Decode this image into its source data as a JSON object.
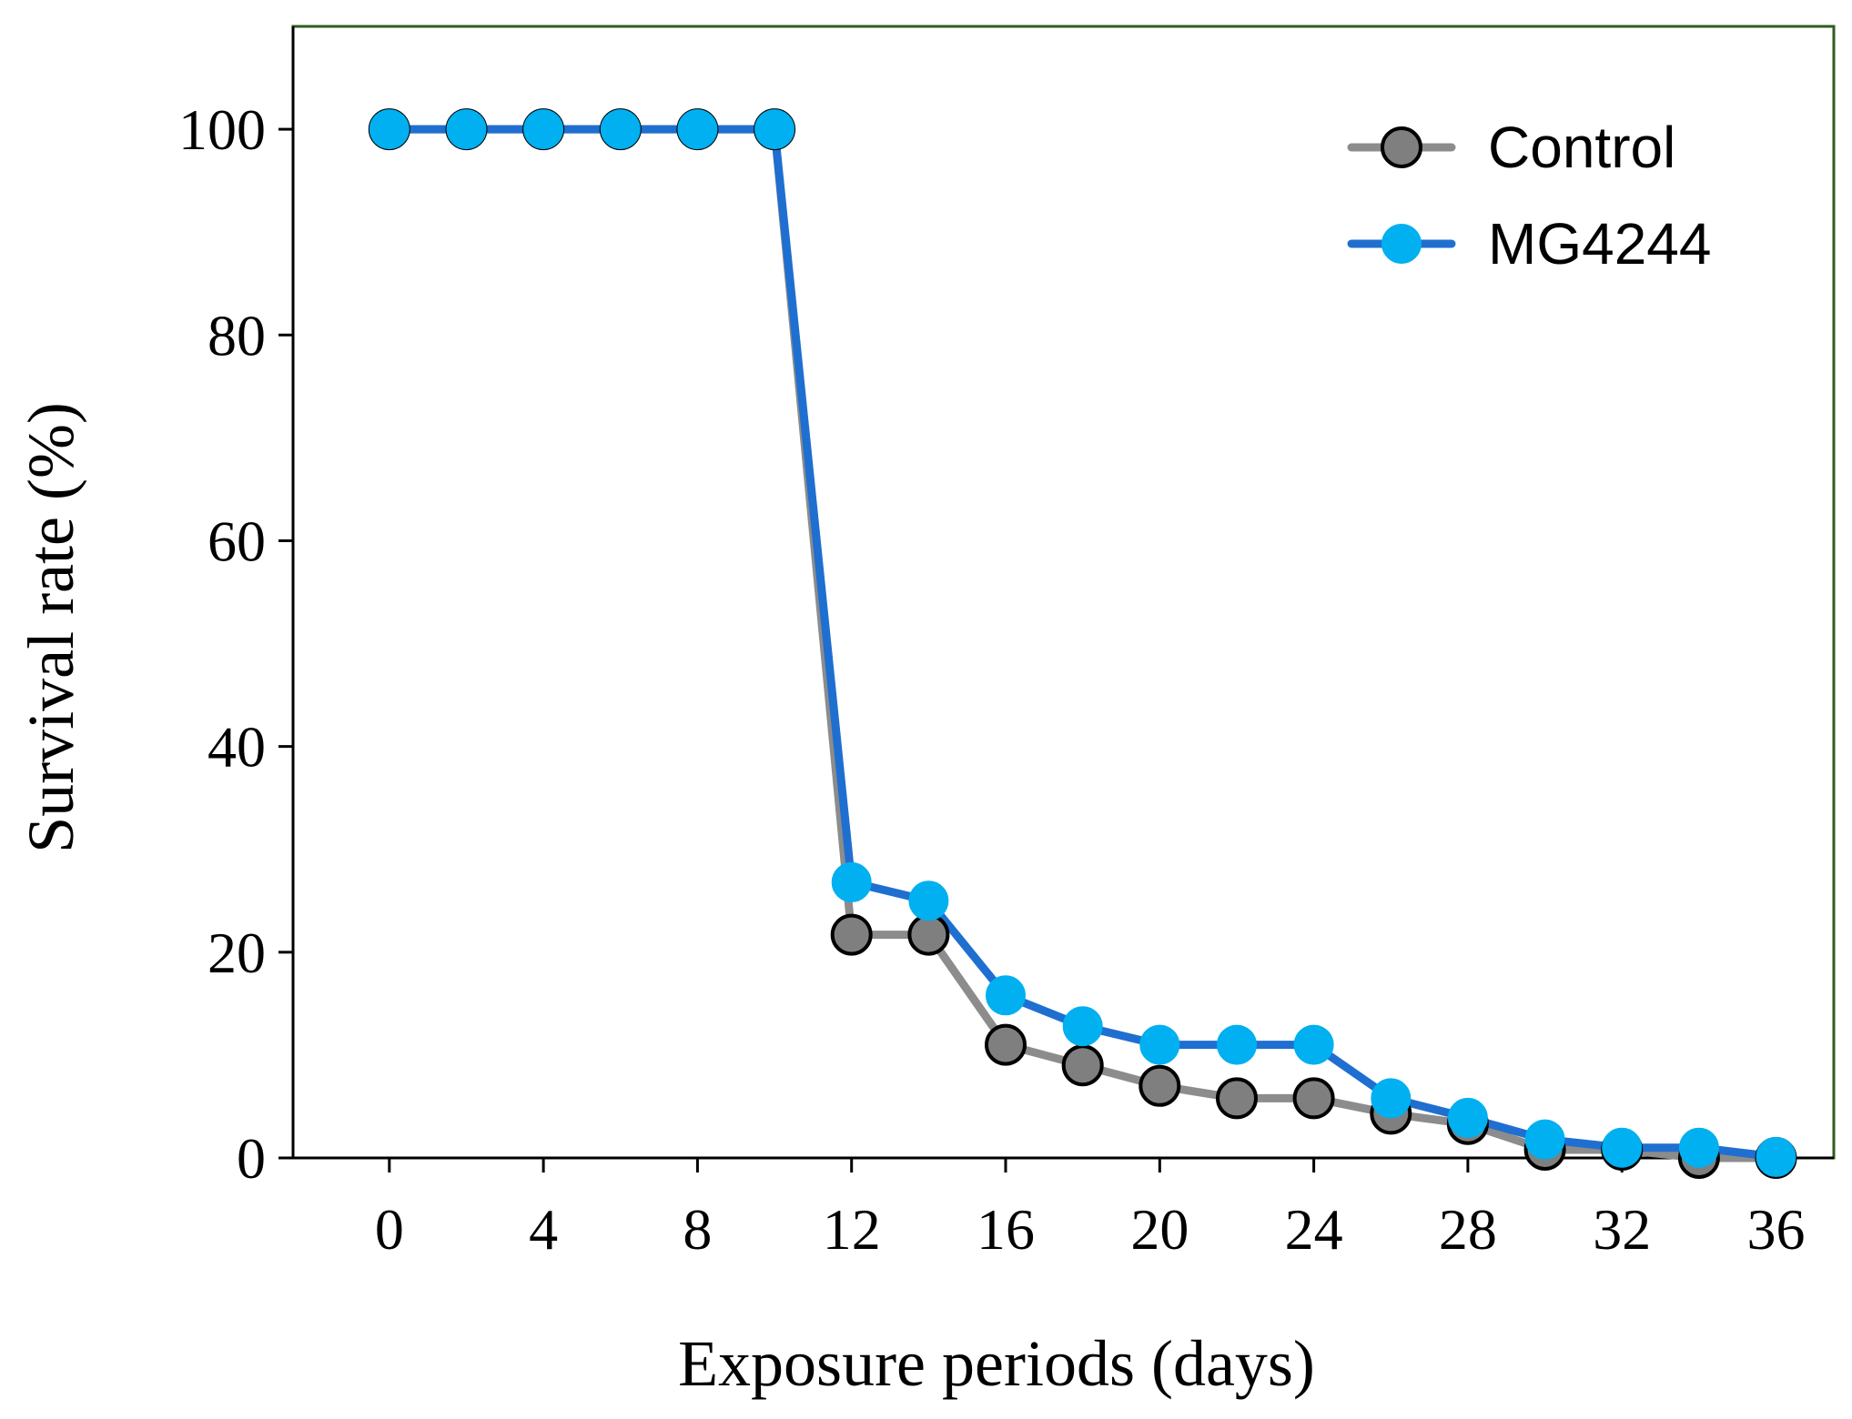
{
  "chart_data": {
    "type": "line",
    "title": "",
    "xlabel": "Exposure periods (days)",
    "ylabel": "Survival rate (%)",
    "xlim": [
      -2.5,
      37.5
    ],
    "ylim": [
      0,
      110
    ],
    "xticks": [
      0,
      4,
      8,
      12,
      16,
      20,
      24,
      28,
      32,
      36
    ],
    "yticks": [
      0,
      20,
      40,
      60,
      80,
      100
    ],
    "grid": false,
    "legend_position": "top-right",
    "x": [
      0,
      2,
      4,
      6,
      8,
      10,
      12,
      14,
      16,
      18,
      20,
      22,
      24,
      26,
      28,
      30,
      32,
      34,
      36
    ],
    "series": [
      {
        "name": "Control",
        "line_color": "#8c8c8c",
        "marker_color": "#7f7f7f",
        "values": [
          100,
          100,
          100,
          100,
          100,
          100,
          21.7,
          21.7,
          11,
          9,
          7,
          5.8,
          5.8,
          4.3,
          3.3,
          0.8,
          0.8,
          0,
          0
        ]
      },
      {
        "name": "MG4244",
        "line_color": "#1f6fd0",
        "marker_color": "#00b0f0",
        "values": [
          100,
          100,
          100,
          100,
          100,
          100,
          26.8,
          25,
          15.8,
          12.8,
          11,
          11,
          11,
          5.8,
          3.9,
          1.8,
          1,
          1,
          0.1
        ]
      }
    ]
  },
  "colors": {
    "frame": "#2e5e1e",
    "axis": "#000000"
  }
}
